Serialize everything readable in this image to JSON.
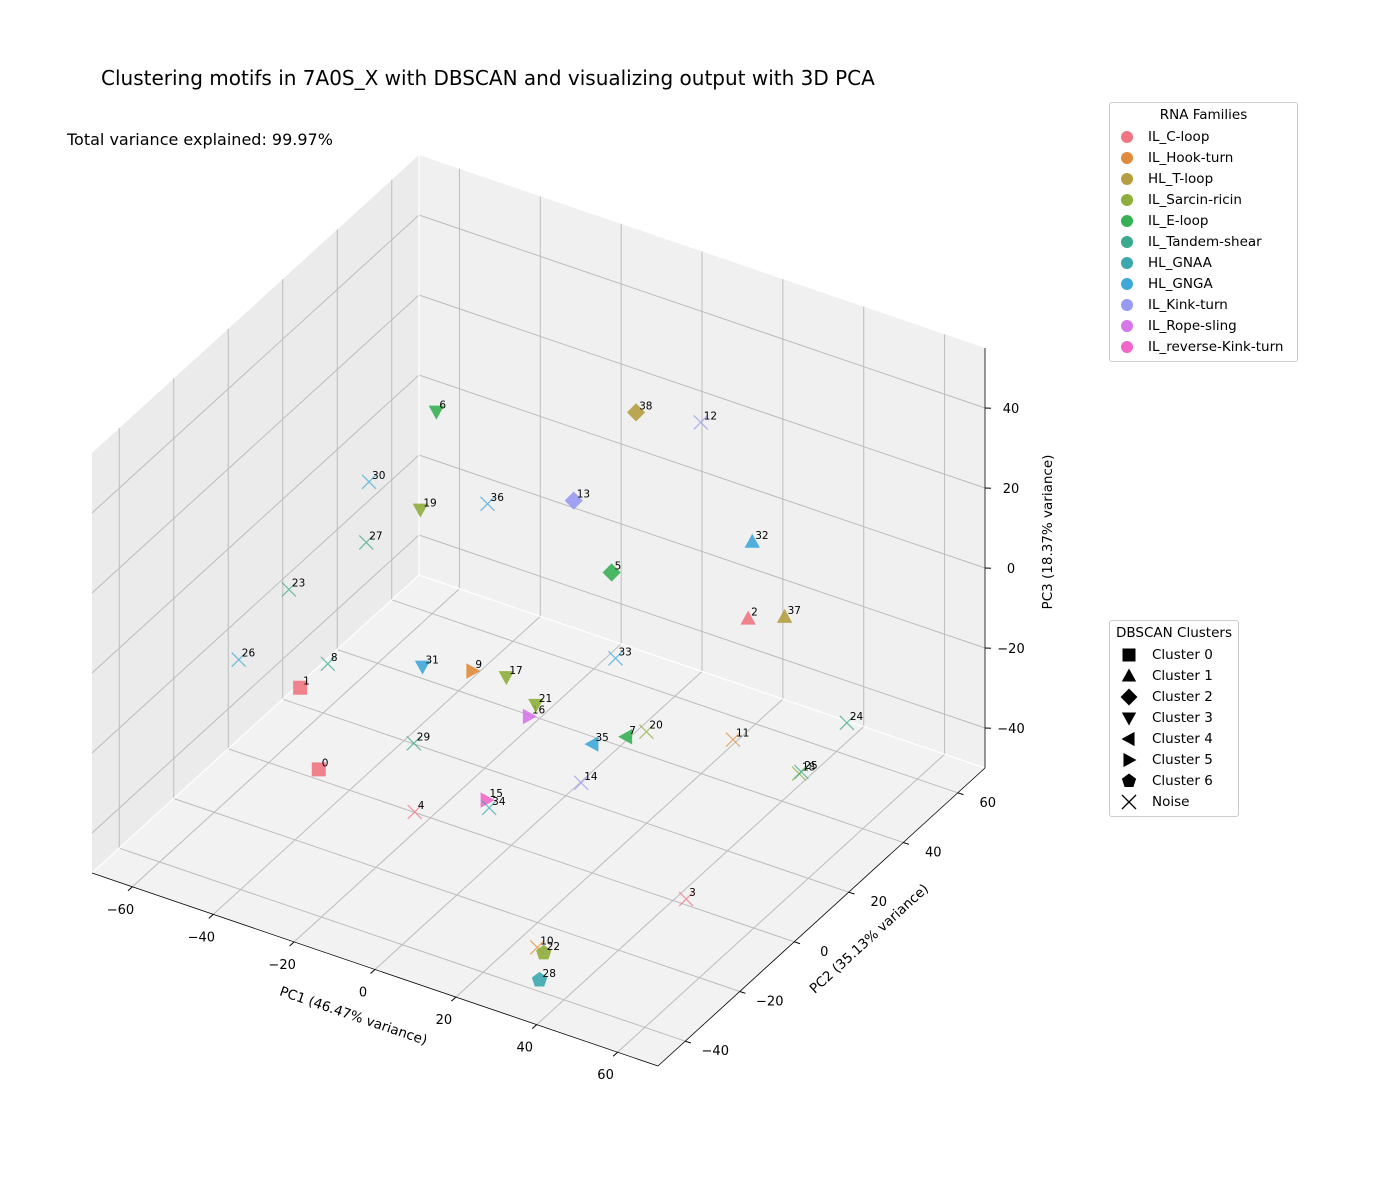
{
  "chart_data": {
    "type": "scatter",
    "title": "Clustering motifs in 7A0S_X with DBSCAN and visualizing output with 3D PCA",
    "annotation": "Total variance explained: 99.97%",
    "xlabel": "PC1 (46.47% variance)",
    "ylabel": "PC2 (35.13% variance)",
    "zlabel": "PC3 (18.37% variance)",
    "x_ticks": [
      "−60",
      "−40",
      "−20",
      "0",
      "20",
      "40",
      "60"
    ],
    "y_ticks": [
      "−40",
      "−20",
      "0",
      "20",
      "40",
      "60"
    ],
    "z_ticks": [
      "−40",
      "−20",
      "0",
      "20",
      "40"
    ],
    "families_legend_title": "RNA Families",
    "clusters_legend_title": "DBSCAN Clusters",
    "families": [
      {
        "name": "IL_C-loop",
        "color": "#f07582"
      },
      {
        "name": "IL_Hook-turn",
        "color": "#e08b3a"
      },
      {
        "name": "HL_T-loop",
        "color": "#b59e3f"
      },
      {
        "name": "IL_Sarcin-ricin",
        "color": "#8ead3a"
      },
      {
        "name": "IL_E-loop",
        "color": "#37b055"
      },
      {
        "name": "IL_Tandem-shear",
        "color": "#3aaa8e"
      },
      {
        "name": "HL_GNAA",
        "color": "#3aa8ad"
      },
      {
        "name": "HL_GNGA",
        "color": "#3fa8d8"
      },
      {
        "name": "IL_Kink-turn",
        "color": "#969af2"
      },
      {
        "name": "IL_Rope-sling",
        "color": "#d775ea"
      },
      {
        "name": "IL_reverse-Kink-turn",
        "color": "#f068c8"
      }
    ],
    "clusters": [
      {
        "name": "Cluster 0",
        "marker": "square"
      },
      {
        "name": "Cluster 1",
        "marker": "triangle-up"
      },
      {
        "name": "Cluster 2",
        "marker": "diamond"
      },
      {
        "name": "Cluster 3",
        "marker": "triangle-down"
      },
      {
        "name": "Cluster 4",
        "marker": "triangle-left"
      },
      {
        "name": "Cluster 5",
        "marker": "triangle-right"
      },
      {
        "name": "Cluster 6",
        "marker": "pentagon"
      },
      {
        "name": "Noise",
        "marker": "x"
      }
    ],
    "points": [
      {
        "label": "0",
        "family": "IL_C-loop",
        "cluster": "Cluster 0",
        "pc1": -22,
        "pc2": -38,
        "pc3": -15
      },
      {
        "label": "1",
        "family": "IL_C-loop",
        "cluster": "Cluster 0",
        "pc1": -32,
        "pc2": -30,
        "pc3": -3
      },
      {
        "label": "2",
        "family": "IL_C-loop",
        "cluster": "Cluster 1",
        "pc1": 35,
        "pc2": 35,
        "pc3": -3
      },
      {
        "label": "3",
        "family": "IL_C-loop",
        "cluster": "Noise",
        "pc1": 50,
        "pc2": -10,
        "pc3": -40
      },
      {
        "label": "4",
        "family": "IL_C-loop",
        "cluster": "Noise",
        "pc1": -5,
        "pc2": -28,
        "pc3": -26
      },
      {
        "label": "5",
        "family": "IL_E-loop",
        "cluster": "Cluster 2",
        "pc1": 10,
        "pc2": 22,
        "pc3": 8
      },
      {
        "label": "6",
        "family": "IL_E-loop",
        "cluster": "Cluster 3",
        "pc1": -32,
        "pc2": 20,
        "pc3": 35
      },
      {
        "label": "7",
        "family": "IL_E-loop",
        "cluster": "Cluster 4",
        "pc1": 19,
        "pc2": 14,
        "pc3": -25
      },
      {
        "label": "8",
        "family": "IL_Tandem-shear",
        "cluster": "Noise",
        "pc1": -42,
        "pc2": -5,
        "pc3": -16
      },
      {
        "label": "9",
        "family": "IL_Hook-turn",
        "cluster": "Cluster 5",
        "pc1": -13,
        "pc2": 5,
        "pc3": -14
      },
      {
        "label": "10",
        "family": "IL_Hook-turn",
        "cluster": "Noise",
        "pc1": 28,
        "pc2": -32,
        "pc3": -46
      },
      {
        "label": "11",
        "family": "IL_Hook-turn",
        "cluster": "Noise",
        "pc1": 38,
        "pc2": 25,
        "pc3": -26
      },
      {
        "label": "12",
        "family": "IL_Kink-turn",
        "cluster": "Noise",
        "pc1": 28,
        "pc2": 28,
        "pc3": 48
      },
      {
        "label": "13",
        "family": "IL_Kink-turn",
        "cluster": "Cluster 2",
        "pc1": 4,
        "pc2": 17,
        "pc3": 27
      },
      {
        "label": "14",
        "family": "IL_Kink-turn",
        "cluster": "Noise",
        "pc1": 20,
        "pc2": -4,
        "pc3": -25
      },
      {
        "label": "15",
        "family": "IL_reverse-Kink-turn",
        "cluster": "Cluster 5",
        "pc1": 4,
        "pc2": -15,
        "pc3": -28
      },
      {
        "label": "16",
        "family": "IL_Rope-sling",
        "cluster": "Cluster 5",
        "pc1": 3,
        "pc2": 2,
        "pc3": -18
      },
      {
        "label": "17",
        "family": "IL_Sarcin-ricin",
        "cluster": "Cluster 3",
        "pc1": -12,
        "pc2": 16,
        "pc3": -22
      },
      {
        "label": "18",
        "family": "IL_Sarcin-ricin",
        "cluster": "Noise",
        "pc1": 55,
        "pc2": 24,
        "pc3": -28
      },
      {
        "label": "19",
        "family": "IL_Sarcin-ricin",
        "cluster": "Cluster 3",
        "pc1": -40,
        "pc2": 26,
        "pc3": 4
      },
      {
        "label": "20",
        "family": "IL_Sarcin-ricin",
        "cluster": "Noise",
        "pc1": 24,
        "pc2": 14,
        "pc3": -22
      },
      {
        "label": "21",
        "family": "IL_Sarcin-ricin",
        "cluster": "Cluster 3",
        "pc1": -2,
        "pc2": 12,
        "pc3": -23
      },
      {
        "label": "22",
        "family": "IL_Sarcin-ricin",
        "cluster": "Cluster 6",
        "pc1": 35,
        "pc2": -40,
        "pc3": -40
      },
      {
        "label": "23",
        "family": "IL_Tandem-shear",
        "cluster": "Noise",
        "pc1": -55,
        "pc2": 0,
        "pc3": -5
      },
      {
        "label": "24",
        "family": "IL_Tandem-shear",
        "cluster": "Noise",
        "pc1": 52,
        "pc2": 46,
        "pc3": -30
      },
      {
        "label": "25",
        "family": "IL_Tandem-shear",
        "cluster": "Noise",
        "pc1": 63,
        "pc2": 13,
        "pc3": -18
      },
      {
        "label": "26",
        "family": "HL_GNGA",
        "cluster": "Noise",
        "pc1": -62,
        "pc2": -8,
        "pc3": -20
      },
      {
        "label": "27",
        "family": "IL_Tandem-shear",
        "cluster": "Noise",
        "pc1": -48,
        "pc2": 18,
        "pc3": -2
      },
      {
        "label": "28",
        "family": "HL_GNAA",
        "cluster": "Cluster 6",
        "pc1": 38,
        "pc2": -46,
        "pc3": -42
      },
      {
        "label": "29",
        "family": "IL_Tandem-shear",
        "cluster": "Noise",
        "pc1": -14,
        "pc2": -15,
        "pc3": -20
      },
      {
        "label": "30",
        "family": "HL_GNGA",
        "cluster": "Noise",
        "pc1": -50,
        "pc2": 22,
        "pc3": 10
      },
      {
        "label": "31",
        "family": "HL_GNGA",
        "cluster": "Cluster 3",
        "pc1": -26,
        "pc2": 6,
        "pc3": -18
      },
      {
        "label": "32",
        "family": "HL_GNGA",
        "cluster": "Cluster 1",
        "pc1": 34,
        "pc2": 38,
        "pc3": 14
      },
      {
        "label": "33",
        "family": "HL_GNGA",
        "cluster": "Noise",
        "pc1": 15,
        "pc2": 16,
        "pc3": -8
      },
      {
        "label": "34",
        "family": "HL_GNAA",
        "cluster": "Noise",
        "pc1": 6,
        "pc2": -17,
        "pc3": -28
      },
      {
        "label": "35",
        "family": "HL_GNGA",
        "cluster": "Cluster 4",
        "pc1": 12,
        "pc2": 12,
        "pc3": -28
      },
      {
        "label": "36",
        "family": "HL_GNGA",
        "cluster": "Noise",
        "pc1": -18,
        "pc2": 18,
        "pc3": 18
      },
      {
        "label": "37",
        "family": "HL_T-loop",
        "cluster": "Cluster 1",
        "pc1": 42,
        "pc2": 38,
        "pc3": -2
      },
      {
        "label": "38",
        "family": "HL_T-loop",
        "cluster": "Cluster 2",
        "pc1": 12,
        "pc2": 28,
        "pc3": 45
      }
    ]
  }
}
